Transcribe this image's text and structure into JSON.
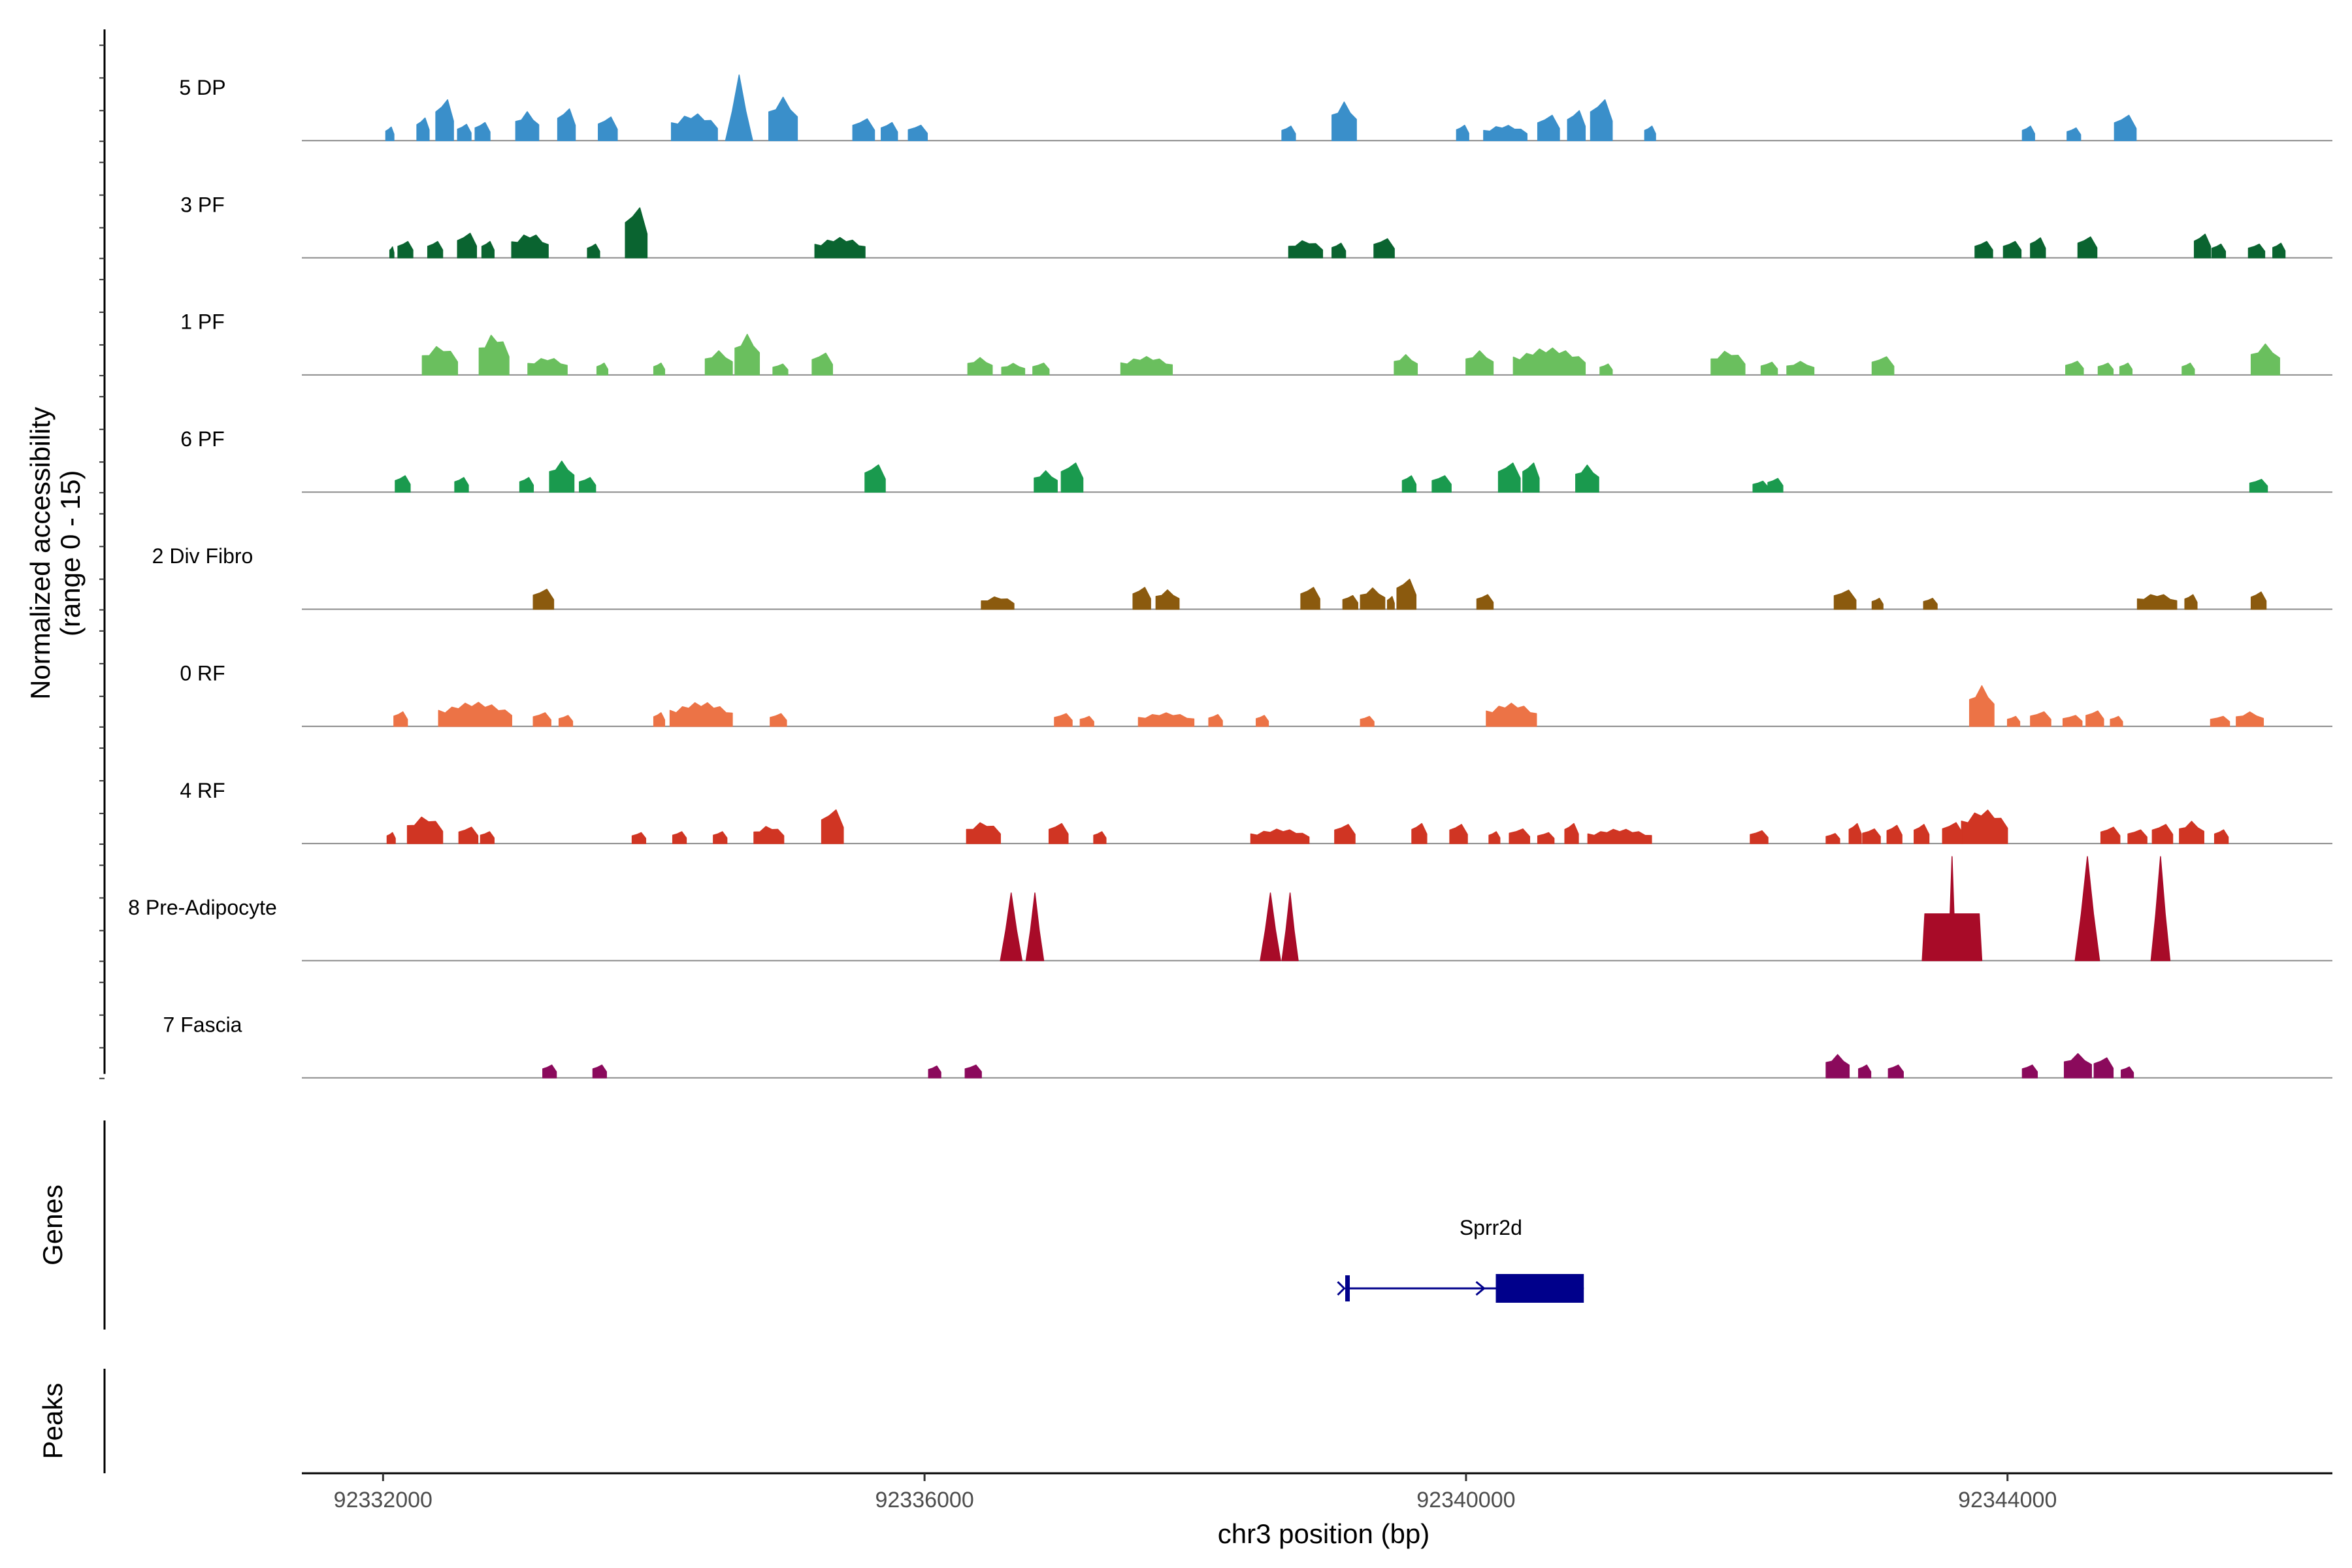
{
  "chart_data": {
    "type": "area",
    "title": "",
    "ylabel": "Normalized accessibility\n(range 0 - 15)",
    "xlabel": "chr3 position (bp)",
    "xlim": [
      92331400,
      92346400
    ],
    "ylim": [
      0,
      15
    ],
    "x_ticks": [
      92332000,
      92336000,
      92340000,
      92344000
    ],
    "x_tick_labels": [
      "92332000",
      "92336000",
      "92340000",
      "92344000"
    ],
    "panel_labels": {
      "genes": "Genes",
      "peaks": "Peaks"
    },
    "tracks": [
      {
        "name": "5 DP",
        "color": "#3a8fca",
        "peaks": [
          [
            92332020,
            92332080,
            1.5
          ],
          [
            92332250,
            92332340,
            2.5
          ],
          [
            92332390,
            92332520,
            4.5
          ],
          [
            92332550,
            92332650,
            1.8
          ],
          [
            92332680,
            92332790,
            2.0
          ],
          [
            92332980,
            92333150,
            3.0
          ],
          [
            92333290,
            92333420,
            3.5
          ],
          [
            92333590,
            92333730,
            2.6
          ],
          [
            92334130,
            92334470,
            2.8
          ],
          [
            92334530,
            92334730,
            6.8
          ],
          [
            92334850,
            92335060,
            4.5
          ],
          [
            92335470,
            92335630,
            2.4
          ],
          [
            92335680,
            92335800,
            2.0
          ],
          [
            92335880,
            92336020,
            1.7
          ],
          [
            92338640,
            92338740,
            1.6
          ],
          [
            92339010,
            92339190,
            4.0
          ],
          [
            92339930,
            92340020,
            1.7
          ],
          [
            92340130,
            92340450,
            1.6
          ],
          [
            92340530,
            92340690,
            2.8
          ],
          [
            92340750,
            92340880,
            3.3
          ],
          [
            92340920,
            92341080,
            4.5
          ],
          [
            92341320,
            92341400,
            1.6
          ],
          [
            92344110,
            92344200,
            1.6
          ],
          [
            92344440,
            92344540,
            1.4
          ],
          [
            92344790,
            92344950,
            2.8
          ]
        ]
      },
      {
        "name": "3 PF",
        "color": "#0a6430",
        "peaks": [
          [
            92332050,
            92332080,
            1.2
          ],
          [
            92332110,
            92332220,
            1.8
          ],
          [
            92332330,
            92332440,
            1.8
          ],
          [
            92332550,
            92332690,
            2.7
          ],
          [
            92332730,
            92332820,
            1.8
          ],
          [
            92332950,
            92333220,
            2.5
          ],
          [
            92333510,
            92333600,
            1.5
          ],
          [
            92333790,
            92333950,
            5.5
          ],
          [
            92335190,
            92335560,
            2.1
          ],
          [
            92338690,
            92338940,
            1.8
          ],
          [
            92339010,
            92339110,
            1.6
          ],
          [
            92339320,
            92339470,
            2.1
          ],
          [
            92343760,
            92343890,
            1.8
          ],
          [
            92343970,
            92344100,
            1.8
          ],
          [
            92344170,
            92344280,
            2.2
          ],
          [
            92344520,
            92344660,
            2.3
          ],
          [
            92345380,
            92345500,
            2.6
          ],
          [
            92345510,
            92345610,
            1.5
          ],
          [
            92345780,
            92345900,
            1.5
          ],
          [
            92345960,
            92346050,
            1.6
          ]
        ]
      },
      {
        "name": "1 PF",
        "color": "#6abf5e",
        "peaks": [
          [
            92332290,
            92332550,
            3.0
          ],
          [
            92332710,
            92332930,
            4.2
          ],
          [
            92333070,
            92333360,
            1.8
          ],
          [
            92333580,
            92333660,
            1.3
          ],
          [
            92334000,
            92334080,
            1.3
          ],
          [
            92334380,
            92334580,
            2.5
          ],
          [
            92334600,
            92334780,
            4.2
          ],
          [
            92334880,
            92334990,
            1.2
          ],
          [
            92335170,
            92335320,
            2.4
          ],
          [
            92336320,
            92336500,
            1.8
          ],
          [
            92336570,
            92336740,
            1.2
          ],
          [
            92336800,
            92336920,
            1.3
          ],
          [
            92337450,
            92337830,
            1.9
          ],
          [
            92339470,
            92339640,
            2.1
          ],
          [
            92340000,
            92340200,
            2.5
          ],
          [
            92340350,
            92340880,
            2.8
          ],
          [
            92340990,
            92341080,
            1.2
          ],
          [
            92341810,
            92342060,
            2.5
          ],
          [
            92342180,
            92342300,
            1.4
          ],
          [
            92342370,
            92342570,
            1.4
          ],
          [
            92343000,
            92343160,
            2.0
          ],
          [
            92344430,
            92344560,
            1.5
          ],
          [
            92344670,
            92344780,
            1.3
          ],
          [
            92344830,
            92344920,
            1.3
          ],
          [
            92345290,
            92345380,
            1.3
          ],
          [
            92345800,
            92346010,
            3.2
          ]
        ]
      },
      {
        "name": "6 PF",
        "color": "#1a9a4e",
        "peaks": [
          [
            92332090,
            92332200,
            1.8
          ],
          [
            92332530,
            92332630,
            1.6
          ],
          [
            92333010,
            92333110,
            1.6
          ],
          [
            92333230,
            92333410,
            3.2
          ],
          [
            92333450,
            92333570,
            1.6
          ],
          [
            92335560,
            92335710,
            3.0
          ],
          [
            92336810,
            92336980,
            2.2
          ],
          [
            92337010,
            92337170,
            3.2
          ],
          [
            92339530,
            92339630,
            1.8
          ],
          [
            92339750,
            92339890,
            1.8
          ],
          [
            92340240,
            92340400,
            3.2
          ],
          [
            92340420,
            92340540,
            3.2
          ],
          [
            92340810,
            92340980,
            2.8
          ],
          [
            92342120,
            92342230,
            1.2
          ],
          [
            92342230,
            92342340,
            1.5
          ],
          [
            92345790,
            92345920,
            1.4
          ]
        ]
      },
      {
        "name": "2 Div Fibro",
        "color": "#8b5a0e",
        "peaks": [
          [
            92333110,
            92333260,
            2.2
          ],
          [
            92336420,
            92336660,
            1.3
          ],
          [
            92337540,
            92337670,
            2.4
          ],
          [
            92337710,
            92337880,
            2.0
          ],
          [
            92338780,
            92338920,
            2.4
          ],
          [
            92339090,
            92339200,
            1.5
          ],
          [
            92339220,
            92339400,
            2.2
          ],
          [
            92339420,
            92339470,
            1.4
          ],
          [
            92339490,
            92339630,
            3.3
          ],
          [
            92340080,
            92340200,
            1.6
          ],
          [
            92342720,
            92342880,
            2.1
          ],
          [
            92343000,
            92343080,
            1.2
          ],
          [
            92343380,
            92343480,
            1.2
          ],
          [
            92344960,
            92345250,
            1.6
          ],
          [
            92345310,
            92345400,
            1.6
          ],
          [
            92345800,
            92345910,
            1.9
          ]
        ]
      },
      {
        "name": "0 RF",
        "color": "#ec7346",
        "peaks": [
          [
            92332080,
            92332180,
            1.6
          ],
          [
            92332410,
            92332950,
            2.5
          ],
          [
            92333110,
            92333240,
            1.5
          ],
          [
            92333300,
            92333400,
            1.2
          ],
          [
            92334000,
            92334080,
            1.5
          ],
          [
            92334120,
            92334580,
            2.5
          ],
          [
            92334860,
            92334980,
            1.4
          ],
          [
            92336960,
            92337090,
            1.4
          ],
          [
            92337150,
            92337250,
            1.1
          ],
          [
            92337580,
            92337990,
            1.4
          ],
          [
            92338100,
            92338200,
            1.3
          ],
          [
            92338450,
            92338540,
            1.2
          ],
          [
            92339220,
            92339320,
            1.1
          ],
          [
            92340150,
            92340520,
            2.4
          ],
          [
            92343720,
            92343900,
            4.2
          ],
          [
            92344000,
            92344090,
            1.1
          ],
          [
            92344170,
            92344320,
            1.6
          ],
          [
            92344410,
            92344550,
            1.2
          ],
          [
            92344580,
            92344710,
            1.7
          ],
          [
            92344760,
            92344850,
            1.1
          ],
          [
            92345500,
            92345640,
            1.1
          ],
          [
            92345690,
            92345890,
            1.5
          ]
        ]
      },
      {
        "name": "4 RF",
        "color": "#d03523",
        "peaks": [
          [
            92332030,
            92332090,
            1.2
          ],
          [
            92332180,
            92332440,
            2.8
          ],
          [
            92332560,
            92332700,
            1.8
          ],
          [
            92332720,
            92332820,
            1.3
          ],
          [
            92333840,
            92333940,
            1.2
          ],
          [
            92334140,
            92334240,
            1.3
          ],
          [
            92334440,
            92334540,
            1.3
          ],
          [
            92334740,
            92334960,
            1.8
          ],
          [
            92335240,
            92335400,
            3.7
          ],
          [
            92336310,
            92336560,
            2.2
          ],
          [
            92336920,
            92337060,
            2.2
          ],
          [
            92337250,
            92337340,
            1.3
          ],
          [
            92338410,
            92338840,
            1.5
          ],
          [
            92339030,
            92339180,
            2.1
          ],
          [
            92339600,
            92339710,
            2.2
          ],
          [
            92339880,
            92340010,
            2.1
          ],
          [
            92340170,
            92340250,
            1.3
          ],
          [
            92340320,
            92340470,
            1.6
          ],
          [
            92340530,
            92340650,
            1.2
          ],
          [
            92340730,
            92340830,
            2.2
          ],
          [
            92340900,
            92341370,
            1.5
          ],
          [
            92342100,
            92342230,
            1.4
          ],
          [
            92342660,
            92342760,
            1.1
          ],
          [
            92342830,
            92342920,
            2.2
          ],
          [
            92342930,
            92343060,
            1.6
          ],
          [
            92343110,
            92343220,
            2.0
          ],
          [
            92343310,
            92343420,
            2.1
          ],
          [
            92343520,
            92343670,
            2.3
          ],
          [
            92343660,
            92344000,
            3.5
          ],
          [
            92344690,
            92344830,
            1.8
          ],
          [
            92344890,
            92345030,
            1.5
          ],
          [
            92345070,
            92345220,
            2.1
          ],
          [
            92345270,
            92345450,
            2.3
          ],
          [
            92345530,
            92345630,
            1.5
          ]
        ]
      },
      {
        "name": "8 Pre-Adipocyte",
        "color": "#a80b28",
        "peaks": [
          [
            92336560,
            92336720,
            7.0
          ],
          [
            92336750,
            92336880,
            7.0
          ],
          [
            92338480,
            92338630,
            7.0
          ],
          [
            92338640,
            92338760,
            7.0
          ],
          [
            92343370,
            92343810,
            13.0
          ],
          [
            92344500,
            92344680,
            13.0
          ],
          [
            92345060,
            92345200,
            12.5
          ]
        ]
      },
      {
        "name": "7 Fascia",
        "color": "#8b0a5c",
        "peaks": [
          [
            92333180,
            92333280,
            1.4
          ],
          [
            92333550,
            92333650,
            1.4
          ],
          [
            92336030,
            92336120,
            1.3
          ],
          [
            92336300,
            92336420,
            1.4
          ],
          [
            92342660,
            92342830,
            2.4
          ],
          [
            92342900,
            92342990,
            1.4
          ],
          [
            92343120,
            92343230,
            1.4
          ],
          [
            92344110,
            92344220,
            1.4
          ],
          [
            92344420,
            92344620,
            2.5
          ],
          [
            92344640,
            92344780,
            2.2
          ],
          [
            92344840,
            92344930,
            1.2
          ]
        ]
      }
    ],
    "genes": [
      {
        "name": "Sprr2d",
        "strand": "+",
        "start": 92339110,
        "end": 92340870,
        "cds_start": 92340220,
        "cds_end": 92340870,
        "color": "#00008b"
      }
    ]
  }
}
